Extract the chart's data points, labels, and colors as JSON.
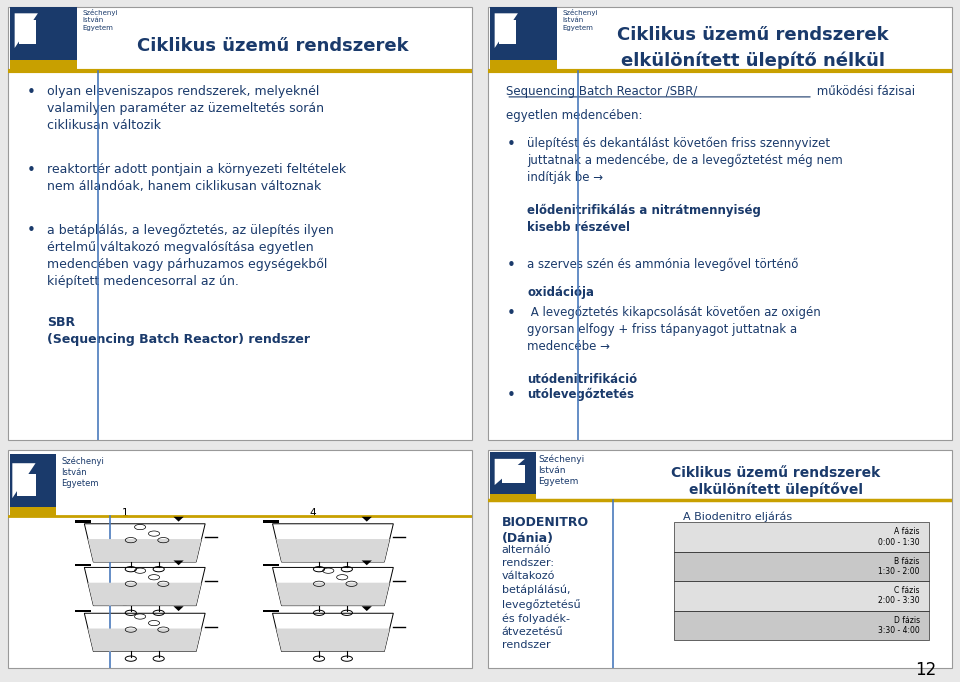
{
  "bg_color": "#e8e8e8",
  "title_color": "#1a3a6b",
  "text_color": "#1a3a6b",
  "border_color": "#999999",
  "gold_color": "#c8a000",
  "blue_line_color": "#4a7abc",
  "panel_tl": {
    "title": "Ciklikus üzemű rendszerek",
    "b1_normal": "olyan eleveniszapos rendszerek, melyeknél\nvalamilyen paraméter az üzemeltetés során\nciklikusan változik",
    "b2_normal": "reaktortér adott pontjain a környezeti feltételek\nnem állandóak, hanem ciklikusan változnak",
    "b3_normal": "a betáplálás, a levegőztetés, az ülepítés ilyen\nértelmű váltakozó megvalósítása egyetlen\nmedencében vagy párhuzamos egységekből\nkiépített medencesorral az ún. ",
    "b3_bold": "SBR\n(Sequencing Batch Reactor) rendszer"
  },
  "panel_tr": {
    "title_line1": "Ciklikus üzemű rendszerek",
    "title_line2": "elkülönített ülepítő nélkül",
    "subtitle_underlined": "Sequencing Batch Reactor /SBR/",
    "subtitle_rest": " működési fázisai\negyetlen medencében:",
    "b1_normal": "ülepítést és dekantálást követően friss szennyvizet\njuttatnak a medencébe, de a levegőztetést még nem\nindítják be → ",
    "b1_bold": "elődenitrifikálás",
    "b1_tail": " a nitrátmennyiség\nkisebb részével",
    "b2_normal": "a szerves szén és ammónia levegővel történő\n",
    "b2_bold": "oxidációja",
    "b3_normal": " A levegőztetés kikapcsolását követően az oxigén\ngyorsan elfogy + friss tápanyagot juttatnak a\nmedencébe → ",
    "b3_bold": "utódenitrifikáció",
    "b4_bold": "utólevegőztetés"
  },
  "panel_br": {
    "title_line1": "Ciklikus üzemű rendszerek",
    "title_line2": "elkülönített ülepítővel",
    "left_bold": "BIODENITRO\n(Dánia)",
    "left_normal": "alternáló\nrendszer:\nváltakozó\nbetáplálású,\nlevegőztetésű\nés folyadék-\nátvezetésű\nrendszer",
    "diagram_title": "A Biodenitro eljárás",
    "phases": [
      "A fázis",
      "B fázis",
      "C fázis",
      "D fázis"
    ],
    "phase_times": [
      "0:00 - 1:30",
      "1:30 - 2:00",
      "2:00 - 3:30",
      "3:30 - 4:00"
    ]
  },
  "page_number": "12"
}
